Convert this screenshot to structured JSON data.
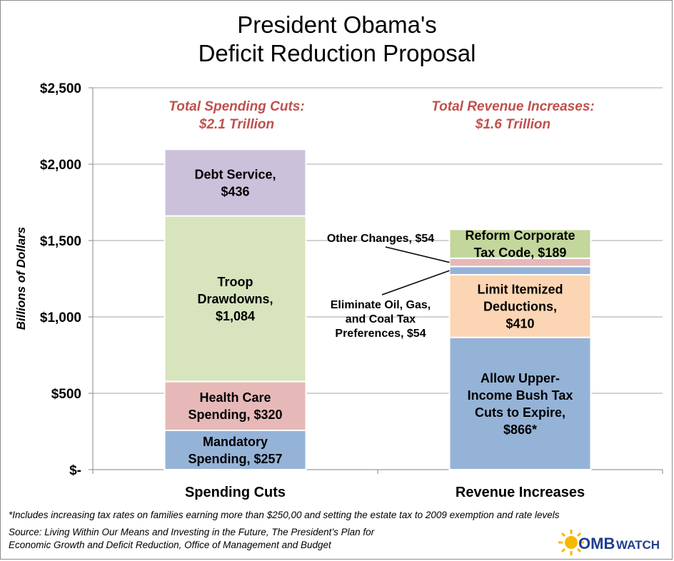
{
  "title_line1": "President Obama's",
  "title_line2": "Deficit Reduction Proposal",
  "footnote": "*Includes increasing tax rates on families earning more than $250,00 and setting the estate tax to 2009 exemption and rate levels",
  "source_line1": "Source: Living Within Our Means and Investing in the Future, The President’s Plan for",
  "source_line2": "Economic Growth  and Deficit Reduction, Office of Management and Budget",
  "logo": {
    "text1": "OMB",
    "text2": "WATCH"
  },
  "colors": {
    "mandatory": "#95b3d7",
    "health": "#e6b9b8",
    "troop": "#d7e4bd",
    "debt": "#ccc1da",
    "bush": "#95b3d7",
    "itemized": "#fcd5b4",
    "oilgas": "#95b3d7",
    "other": "#e6b9b8",
    "corporate": "#c3d69b",
    "annotation": "#c0504d"
  },
  "chart_data": {
    "type": "bar",
    "stacked": true,
    "ylabel": "Billions of Dollars",
    "ylim": [
      0,
      2500
    ],
    "yticks": [
      {
        "value": 0,
        "label": "$-"
      },
      {
        "value": 500,
        "label": "$500"
      },
      {
        "value": 1000,
        "label": "$1,000"
      },
      {
        "value": 1500,
        "label": "$1,500"
      },
      {
        "value": 2000,
        "label": "$2,000"
      },
      {
        "value": 2500,
        "label": "$2,500"
      }
    ],
    "grid": true,
    "categories": [
      "Spending Cuts",
      "Revenue Increases"
    ],
    "annotations": [
      {
        "category": "Spending Cuts",
        "lines": [
          "Total Spending Cuts:",
          "$2.1 Trillion"
        ]
      },
      {
        "category": "Revenue Increases",
        "lines": [
          "Total Revenue Increases:",
          "$1.6 Trillion"
        ]
      }
    ],
    "bars": [
      {
        "category": "Spending Cuts",
        "segments": [
          {
            "key": "mandatory",
            "value": 257,
            "label_lines": [
              "Mandatory",
              "Spending, $257"
            ]
          },
          {
            "key": "health",
            "value": 320,
            "label_lines": [
              "Health Care",
              "Spending,  $320"
            ]
          },
          {
            "key": "troop",
            "value": 1084,
            "label_lines": [
              "Troop",
              "Drawdowns,",
              "$1,084"
            ]
          },
          {
            "key": "debt",
            "value": 436,
            "label_lines": [
              "Debt Service,",
              "$436"
            ]
          }
        ]
      },
      {
        "category": "Revenue Increases",
        "segments": [
          {
            "key": "bush",
            "value": 866,
            "label_lines": [
              "Allow Upper-",
              "Income Bush Tax",
              "Cuts to Expire,",
              "$866*"
            ]
          },
          {
            "key": "itemized",
            "value": 410,
            "label_lines": [
              "Limit Itemized",
              "Deductions,",
              "$410"
            ]
          },
          {
            "key": "oilgas",
            "value": 54,
            "label_lines": [
              "Eliminate Oil, Gas,",
              "and Coal Tax",
              "Preferences, $54"
            ],
            "callout": "below-left"
          },
          {
            "key": "other",
            "value": 54,
            "label_lines": [
              "Other Changes,  $54"
            ],
            "callout": "above-left"
          },
          {
            "key": "corporate",
            "value": 189,
            "label_lines": [
              "Reform Corporate",
              "Tax Code, $189"
            ]
          }
        ]
      }
    ]
  }
}
